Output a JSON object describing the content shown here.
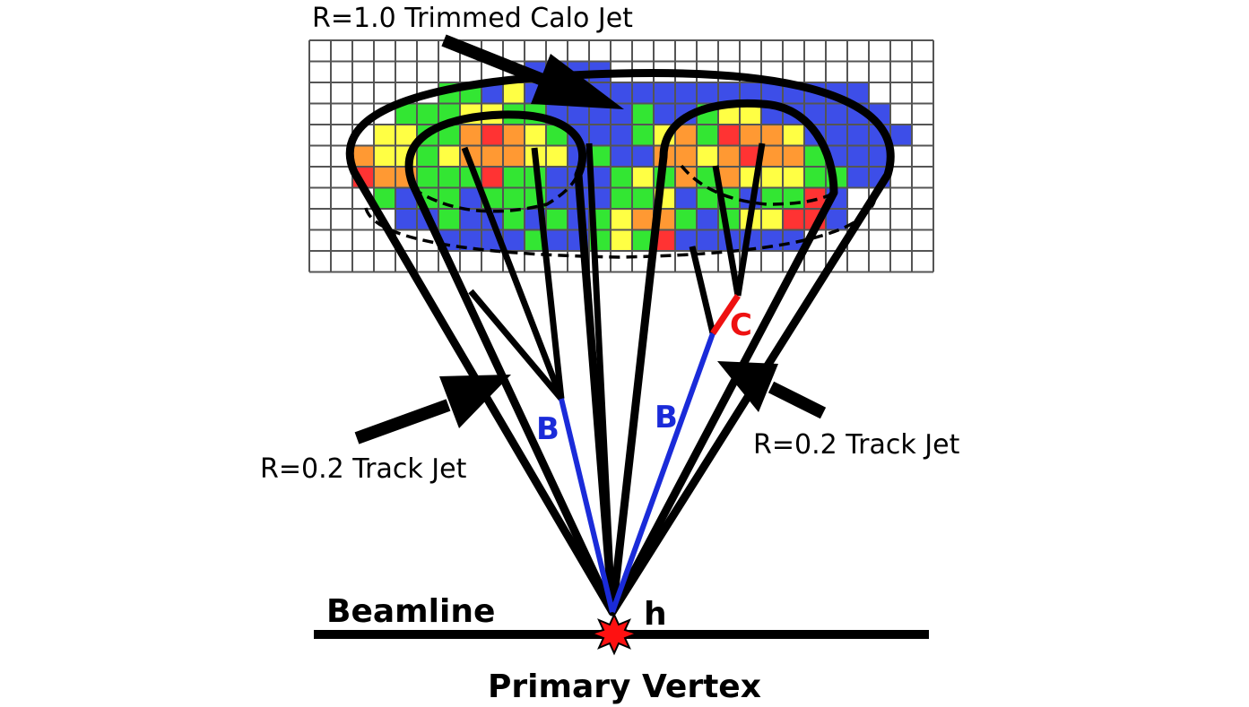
{
  "labels": {
    "calo_jet": "R=1.0 Trimmed Calo Jet",
    "track_jet_left": "R=0.2 Track Jet",
    "track_jet_right": "R=0.2 Track Jet",
    "b_left": "B",
    "b_right": "B",
    "c_quark": "C",
    "higgs": "h",
    "beamline": "Beamline",
    "primary_vertex": "Primary Vertex"
  },
  "colors": {
    "blue": "#3d4ee8",
    "green": "#33e633",
    "yellow": "#ffff44",
    "orange": "#ff9933",
    "red": "#ff3333",
    "b_quark": "#1a2bd9",
    "c_quark": "#ee1111",
    "grid": "#555555",
    "vertex": "#ff1111"
  },
  "calorimeter": {
    "cols": 29,
    "rows": 11,
    "cells": [
      ".............................",
      "..........BBBB...............",
      "......GGBYBBBBBBBBBBBBBBBB....",
      "....GGGYYGGBBBBGBBGYYBBBBBB..",
      "...YYGGOROYGBBBGYOGROOYBBBBB.",
      "..OYYGYOOOYYBGBBOOYOROOGBBB..",
      "..ROOGGGRGGBBBGYGOGOYYYGGBB..",
      "...GBGGBGGGBBBGGYBGGBGGRB....",
      "....BBGBBGBGBGYOOGBGYYRRB....",
      "......BBBBGBBGYGRBBBBBB......",
      "............................."
    ]
  }
}
